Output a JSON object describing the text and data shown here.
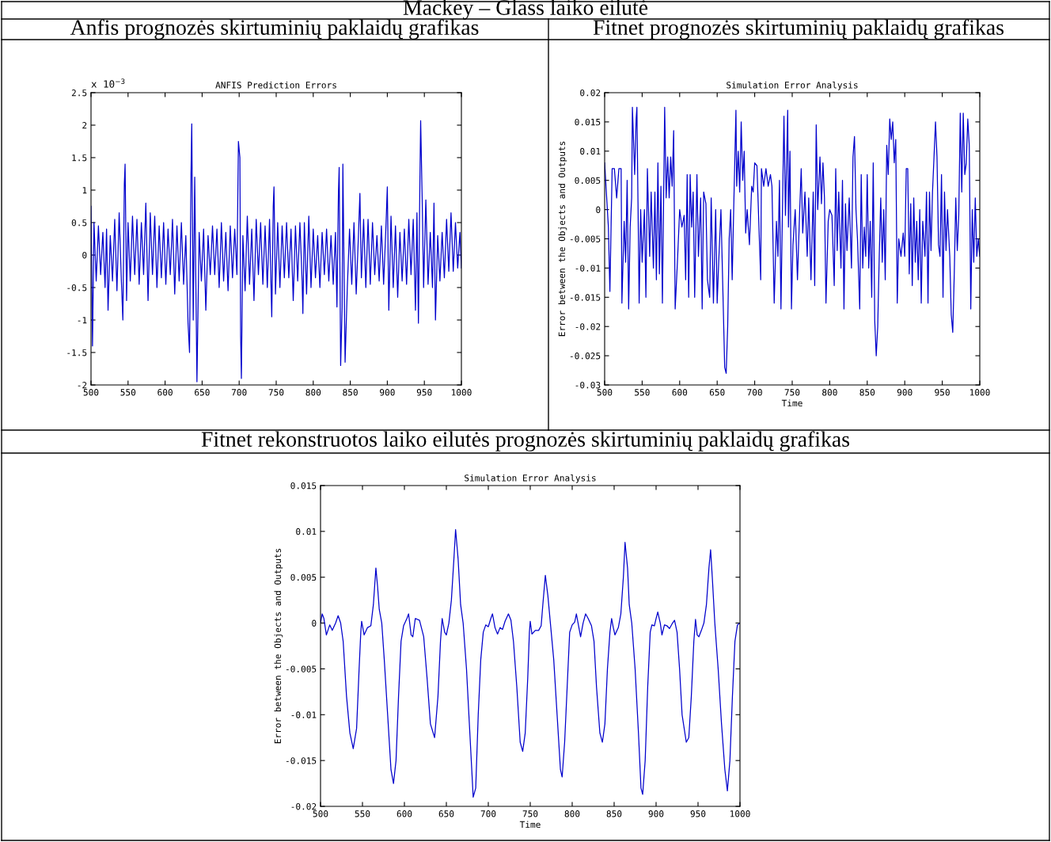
{
  "chart_data": [
    {
      "type": "line",
      "title": "Anfis prognozės skirtuminių paklaidų grafikas",
      "subtitle": "ANFIS Prediction Errors",
      "annotations": [
        "Mackey – Glass laiko eilutė",
        "x 10$^{−3}$"
      ],
      "xlim": [
        500,
        1000
      ],
      "xticks": [
        500,
        550,
        600,
        650,
        700,
        750,
        800,
        850,
        900,
        950,
        1000
      ],
      "ylim": [
        -2,
        2.5
      ],
      "yticks": [
        -2,
        -1.5,
        -1,
        -0.5,
        0,
        0.5,
        1,
        1.5,
        2,
        2.5
      ],
      "grid": false,
      "series": [
        {
          "color": "#0000cc",
          "x": [
            500,
            502,
            504,
            507,
            510,
            513,
            516,
            519,
            521,
            523,
            526,
            529,
            532,
            535,
            538,
            541,
            543,
            545,
            546,
            548,
            550,
            553,
            556,
            559,
            562,
            565,
            568,
            571,
            574,
            577,
            580,
            583,
            586,
            589,
            592,
            595,
            598,
            601,
            604,
            607,
            610,
            613,
            616,
            619,
            622,
            625,
            628,
            631,
            633,
            635,
            636,
            638,
            640,
            643,
            646,
            649,
            652,
            655,
            658,
            661,
            664,
            667,
            670,
            673,
            676,
            679,
            682,
            685,
            688,
            691,
            694,
            697,
            699,
            701,
            702,
            703,
            705,
            708,
            711,
            714,
            717,
            720,
            723,
            726,
            729,
            732,
            735,
            738,
            741,
            744,
            746,
            747,
            749,
            752,
            755,
            758,
            761,
            764,
            767,
            770,
            773,
            776,
            779,
            782,
            785,
            786,
            788,
            791,
            794,
            797,
            800,
            803,
            806,
            809,
            812,
            815,
            818,
            821,
            824,
            827,
            830,
            832,
            834,
            835,
            837,
            839,
            840,
            843,
            846,
            849,
            852,
            855,
            858,
            861,
            863,
            865,
            868,
            871,
            874,
            877,
            880,
            883,
            886,
            889,
            892,
            895,
            898,
            900,
            902,
            905,
            908,
            911,
            914,
            917,
            920,
            923,
            926,
            929,
            932,
            935,
            938,
            940,
            942,
            944,
            945,
            947,
            949,
            952,
            955,
            958,
            961,
            963,
            965,
            968,
            971,
            974,
            977,
            980,
            983,
            986,
            989,
            992,
            995,
            998,
            1000
          ],
          "values": [
            0.75,
            -1.4,
            0.5,
            -0.4,
            0.45,
            -0.3,
            0.35,
            -0.5,
            0.4,
            -0.85,
            0.3,
            -0.4,
            0.55,
            -0.55,
            0.65,
            -0.4,
            -1.0,
            1.1,
            1.4,
            -0.7,
            0.5,
            -0.4,
            0.6,
            -0.3,
            0.55,
            -0.45,
            0.5,
            -0.3,
            0.8,
            -0.7,
            0.65,
            -0.3,
            0.6,
            -0.5,
            0.45,
            -0.35,
            0.5,
            -0.45,
            0.4,
            -0.3,
            0.55,
            -0.6,
            0.45,
            -0.4,
            0.5,
            -0.45,
            0.3,
            -1.05,
            -1.5,
            1.25,
            2.02,
            -1.0,
            1.2,
            -1.95,
            0.35,
            -0.4,
            0.4,
            -0.85,
            0.3,
            -0.3,
            0.45,
            -0.3,
            0.4,
            -0.5,
            0.5,
            -0.4,
            0.35,
            -0.55,
            0.45,
            -0.35,
            0.4,
            -0.3,
            1.75,
            1.5,
            -1.25,
            -1.9,
            0.3,
            -0.55,
            0.6,
            -0.45,
            0.4,
            -0.7,
            0.55,
            -0.3,
            0.5,
            -0.45,
            0.45,
            -0.5,
            0.55,
            -0.95,
            0.75,
            1.05,
            -0.6,
            0.5,
            -0.5,
            0.45,
            -0.35,
            0.5,
            -0.35,
            0.4,
            -0.7,
            0.45,
            -0.4,
            0.5,
            -0.4,
            -0.9,
            0.5,
            -0.6,
            0.6,
            -0.5,
            0.4,
            -0.35,
            0.3,
            -0.5,
            0.35,
            -0.3,
            0.4,
            -0.4,
            0.3,
            -0.45,
            0.35,
            -0.8,
            0.95,
            1.35,
            -1.7,
            -0.8,
            1.4,
            -1.65,
            -0.5,
            0.4,
            -0.45,
            0.5,
            -0.6,
            0.3,
            0.95,
            -0.35,
            0.55,
            -0.5,
            0.55,
            -0.45,
            0.5,
            -0.3,
            0.3,
            -0.4,
            0.45,
            -0.45,
            0.4,
            1.05,
            -0.85,
            0.6,
            -0.5,
            0.45,
            -0.65,
            0.35,
            -0.4,
            0.4,
            -0.45,
            0.55,
            -0.3,
            0.55,
            -0.85,
            0.65,
            -1.05,
            1.15,
            2.07,
            0.9,
            -0.5,
            0.85,
            -0.45,
            0.35,
            -0.5,
            0.8,
            -1.0,
            0.3,
            -0.4,
            0.35,
            -0.35,
            0.55,
            -0.25,
            0.65,
            -0.25,
            0.5,
            -0.2,
            0.35,
            -0.2
          ]
        }
      ]
    },
    {
      "type": "line",
      "title": "Fitnet prognozės skirtuminių paklaidų grafikas",
      "subtitle": "Simulation Error Analysis",
      "xlabel": "Time",
      "ylabel": "Error between the Objects and Outputs",
      "xlim": [
        500,
        1000
      ],
      "xticks": [
        500,
        550,
        600,
        650,
        700,
        750,
        800,
        850,
        900,
        950,
        1000
      ],
      "ylim": [
        -0.03,
        0.02
      ],
      "yticks": [
        -0.03,
        -0.025,
        -0.02,
        -0.015,
        -0.01,
        -0.005,
        0,
        0.005,
        0.01,
        0.015,
        0.02
      ],
      "grid": false,
      "series": [
        {
          "color": "#0000cc",
          "x": [
            500,
            505,
            507,
            510,
            513,
            516,
            519,
            522,
            523,
            526,
            528,
            530,
            532,
            534,
            536,
            537,
            540,
            542,
            543,
            546,
            548,
            550,
            553,
            555,
            557,
            560,
            562,
            565,
            567,
            569,
            571,
            573,
            575,
            577,
            580,
            582,
            584,
            586,
            588,
            590,
            592,
            594,
            597,
            600,
            603,
            606,
            608,
            610,
            612,
            614,
            616,
            618,
            620,
            623,
            625,
            628,
            630,
            632,
            635,
            637,
            640,
            642,
            645,
            648,
            650,
            652,
            655,
            658,
            660,
            662,
            664,
            666,
            668,
            670,
            672,
            675,
            676,
            678,
            680,
            682,
            684,
            686,
            688,
            690,
            693,
            696,
            698,
            700,
            703,
            708,
            709,
            712,
            715,
            718,
            721,
            723,
            726,
            729,
            731,
            733,
            735,
            737,
            739,
            741,
            744,
            745,
            747,
            749,
            751,
            754,
            757,
            760,
            762,
            764,
            767,
            770,
            772,
            775,
            778,
            780,
            782,
            784,
            787,
            789,
            791,
            793,
            795,
            798,
            800,
            803,
            806,
            808,
            810,
            812,
            815,
            817,
            819,
            821,
            823,
            826,
            829,
            831,
            833,
            835,
            837,
            840,
            842,
            844,
            846,
            848,
            850,
            852,
            854,
            856,
            858,
            860,
            862,
            864,
            866,
            868,
            870,
            872,
            874,
            876,
            878,
            880,
            882,
            884,
            886,
            888,
            890,
            892,
            895,
            898,
            900,
            902,
            904,
            906,
            908,
            910,
            912,
            914,
            916,
            918,
            920,
            922,
            924,
            927,
            929,
            931,
            933,
            935,
            937,
            939,
            941,
            943,
            945,
            947,
            949,
            951,
            953,
            955,
            957,
            960,
            962,
            964,
            966,
            968,
            970,
            972,
            974,
            976,
            978,
            980,
            982,
            984,
            986,
            988,
            990,
            992,
            994,
            996,
            998,
            1000
          ],
          "values": [
            0.008,
            -0.003,
            -0.014,
            0.007,
            0.007,
            0.002,
            0.007,
            0.007,
            -0.016,
            -0.002,
            -0.009,
            0.005,
            -0.017,
            -0.003,
            0.002,
            0.0175,
            0.006,
            0.0155,
            0.0175,
            -0.016,
            0.0,
            -0.009,
            0.0,
            -0.015,
            0.007,
            -0.008,
            0.003,
            -0.01,
            0.003,
            -0.012,
            0.008,
            -0.011,
            0.004,
            -0.016,
            0.0175,
            0.002,
            0.009,
            0.002,
            0.009,
            0.004,
            0.0135,
            -0.017,
            -0.009,
            0.0,
            -0.003,
            -0.001,
            -0.012,
            0.006,
            -0.015,
            0.006,
            -0.003,
            0.003,
            -0.015,
            0.006,
            -0.008,
            0.002,
            -0.017,
            0.003,
            0.001,
            -0.012,
            -0.015,
            0.002,
            -0.016,
            0.0,
            -0.016,
            -0.009,
            0.0,
            -0.016,
            -0.027,
            -0.028,
            -0.02,
            -0.005,
            0.0,
            -0.012,
            0.0,
            0.017,
            0.004,
            0.01,
            0.003,
            0.015,
            0.005,
            0.01,
            -0.004,
            0.0,
            -0.006,
            0.004,
            0.003,
            0.008,
            0.0075,
            -0.012,
            0.007,
            0.004,
            0.007,
            0.004,
            0.006,
            0.004,
            -0.016,
            -0.002,
            -0.008,
            0.005,
            -0.017,
            0.0,
            0.016,
            -0.001,
            0.017,
            -0.003,
            0.01,
            -0.017,
            -0.006,
            0.0,
            -0.012,
            0.0,
            0.007,
            -0.004,
            0.003,
            -0.008,
            0.002,
            -0.012,
            0.003,
            -0.013,
            0.0145,
            0.0,
            0.009,
            0.001,
            0.008,
            0.002,
            -0.016,
            -0.002,
            0.0,
            -0.001,
            -0.013,
            0.007,
            -0.007,
            0.003,
            -0.01,
            0.005,
            -0.017,
            0.001,
            -0.007,
            0.002,
            -0.01,
            0.009,
            0.0125,
            0.0,
            -0.005,
            -0.017,
            0.006,
            -0.01,
            -0.003,
            -0.008,
            0.006,
            -0.01,
            -0.002,
            -0.015,
            0.008,
            -0.019,
            -0.025,
            -0.02,
            -0.008,
            0.002,
            -0.009,
            0.0,
            -0.012,
            0.011,
            0.006,
            0.0155,
            0.012,
            0.015,
            0.008,
            0.012,
            -0.016,
            -0.005,
            -0.008,
            -0.004,
            -0.008,
            0.007,
            0.007,
            -0.011,
            0.001,
            -0.013,
            0.002,
            -0.009,
            -0.002,
            -0.012,
            0.0,
            -0.016,
            -0.002,
            -0.008,
            0.003,
            -0.016,
            0.003,
            -0.007,
            0.003,
            0.009,
            0.015,
            0.009,
            -0.006,
            -0.008,
            0.006,
            -0.015,
            0.003,
            -0.007,
            0.0,
            -0.008,
            -0.018,
            -0.021,
            -0.011,
            0.002,
            -0.007,
            -0.001,
            0.0165,
            0.003,
            0.0165,
            0.006,
            0.008,
            0.0155,
            0.011,
            -0.017,
            0.0,
            -0.009,
            0.002,
            -0.008,
            -0.005,
            -0.008
          ]
        }
      ]
    },
    {
      "type": "line",
      "title": "Fitnet rekonstruotos laiko eilutės prognozės skirtuminių paklaidų grafikas",
      "subtitle": "Simulation Error Analysis",
      "xlabel": "Time",
      "ylabel": "Error between the Objects and Outputs",
      "xlim": [
        500,
        1000
      ],
      "xticks": [
        500,
        550,
        600,
        650,
        700,
        750,
        800,
        850,
        900,
        950,
        1000
      ],
      "ylim": [
        -0.02,
        0.015
      ],
      "yticks": [
        -0.02,
        -0.015,
        -0.01,
        -0.005,
        0,
        0.005,
        0.01,
        0.015
      ],
      "grid": false,
      "series": [
        {
          "color": "#0000cc",
          "x": [
            500,
            502,
            504,
            507,
            511,
            514,
            518,
            521,
            524,
            527,
            531,
            535,
            539,
            543,
            546,
            548,
            549,
            552,
            556,
            560,
            563,
            566,
            568,
            570,
            573,
            576,
            580,
            584,
            587,
            590,
            593,
            596,
            599,
            603,
            605,
            608,
            610,
            613,
            618,
            623,
            627,
            631,
            636,
            640,
            643,
            645,
            648,
            650,
            653,
            656,
            659,
            661,
            664,
            667,
            670,
            674,
            678,
            682,
            685,
            688,
            691,
            694,
            697,
            700,
            703,
            705,
            708,
            711,
            714,
            717,
            720,
            724,
            727,
            730,
            734,
            738,
            741,
            744,
            747,
            749,
            750,
            752,
            756,
            760,
            763,
            765,
            768,
            771,
            774,
            778,
            782,
            786,
            788,
            791,
            794,
            797,
            800,
            803,
            805,
            808,
            810,
            813,
            816,
            819,
            823,
            826,
            829,
            833,
            836,
            839,
            842,
            845,
            847,
            849,
            851,
            855,
            858,
            861,
            863,
            866,
            868,
            871,
            875,
            879,
            882,
            884,
            887,
            890,
            893,
            895,
            898,
            900,
            902,
            905,
            907,
            910,
            913,
            916,
            919,
            922,
            925,
            928,
            931,
            936,
            939,
            942,
            945,
            947,
            949,
            951,
            954,
            957,
            960,
            963,
            965,
            967,
            970,
            974,
            978,
            982,
            985,
            988,
            991,
            994,
            997,
            1000
          ],
          "values": [
            0.0,
            0.001,
            0.0005,
            -0.0013,
            -0.0002,
            -0.0008,
            0.0,
            0.0008,
            0.0,
            -0.002,
            -0.008,
            -0.012,
            -0.0137,
            -0.0115,
            -0.005,
            -0.001,
            0.0002,
            -0.0013,
            -0.0005,
            -0.0003,
            0.002,
            0.006,
            0.004,
            0.0015,
            0.0,
            -0.004,
            -0.01,
            -0.016,
            -0.0175,
            -0.015,
            -0.008,
            -0.002,
            -0.0003,
            0.0005,
            0.001,
            -0.0013,
            -0.0015,
            0.0005,
            0.0003,
            -0.0015,
            -0.006,
            -0.011,
            -0.0125,
            -0.008,
            -0.002,
            0.0005,
            -0.001,
            -0.0013,
            0.0,
            0.0025,
            0.007,
            0.0102,
            0.007,
            0.002,
            0.0,
            -0.005,
            -0.012,
            -0.019,
            -0.018,
            -0.01,
            -0.004,
            -0.001,
            -0.0002,
            -0.0004,
            0.0005,
            0.001,
            -0.0005,
            -0.0012,
            -0.0005,
            -0.0007,
            0.0002,
            0.001,
            0.0003,
            -0.002,
            -0.007,
            -0.013,
            -0.014,
            -0.012,
            -0.006,
            -0.001,
            0.0002,
            -0.0012,
            -0.0008,
            -0.0008,
            -0.0003,
            0.002,
            0.0052,
            0.003,
            0.0,
            -0.004,
            -0.01,
            -0.016,
            -0.0168,
            -0.013,
            -0.007,
            -0.001,
            -0.0002,
            0.0001,
            0.001,
            -0.0005,
            -0.0015,
            0.0,
            0.001,
            0.0005,
            -0.0003,
            -0.002,
            -0.007,
            -0.012,
            -0.013,
            -0.011,
            -0.005,
            -0.001,
            0.0005,
            -0.0005,
            -0.0013,
            -0.0005,
            0.001,
            0.005,
            0.0088,
            0.006,
            0.002,
            0.0,
            -0.005,
            -0.012,
            -0.018,
            -0.0187,
            -0.015,
            -0.007,
            -0.001,
            -0.0002,
            -0.0003,
            0.0005,
            0.0012,
            0.0,
            -0.0013,
            -0.0002,
            -0.0003,
            -0.0006,
            -0.0001,
            0.0003,
            -0.001,
            -0.005,
            -0.01,
            -0.013,
            -0.0125,
            -0.008,
            -0.002,
            0.0004,
            -0.0013,
            -0.0015,
            -0.0008,
            0.0,
            0.002,
            0.006,
            0.008,
            0.005,
            0.0,
            -0.005,
            -0.011,
            -0.016,
            -0.0183,
            -0.015,
            -0.008,
            -0.002,
            -0.0002,
            0.0
          ]
        }
      ]
    }
  ]
}
